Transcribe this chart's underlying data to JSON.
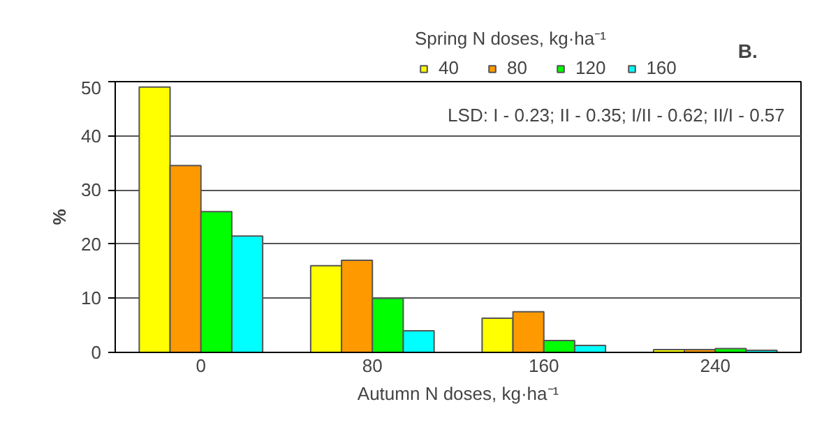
{
  "chart_data": {
    "type": "bar",
    "xlabel": "Autumn N doses, kg·ha⁻¹",
    "ylabel": "%",
    "legend_title": "Spring N doses, kg·ha⁻¹",
    "categories": [
      "0",
      "80",
      "160",
      "240"
    ],
    "series": [
      {
        "name": "40",
        "color": "#ffff00",
        "values": [
          49,
          16,
          6.3,
          0.5
        ]
      },
      {
        "name": "80",
        "color": "#ff9900",
        "values": [
          34.5,
          17,
          7.5,
          0.5
        ]
      },
      {
        "name": "120",
        "color": "#00ff00",
        "values": [
          26,
          10,
          2.2,
          0.7
        ]
      },
      {
        "name": "160",
        "color": "#00ffff",
        "values": [
          21.5,
          4,
          1.3,
          0.4
        ]
      }
    ],
    "ylim": [
      0,
      50
    ],
    "yticks": [
      0,
      10,
      20,
      30,
      40,
      50
    ],
    "grid": "y",
    "legend": "top",
    "annotations": [
      "B.",
      "LSD:  I - 0.23; II - 0.35; I/II - 0.62; II/I - 0.57"
    ]
  }
}
